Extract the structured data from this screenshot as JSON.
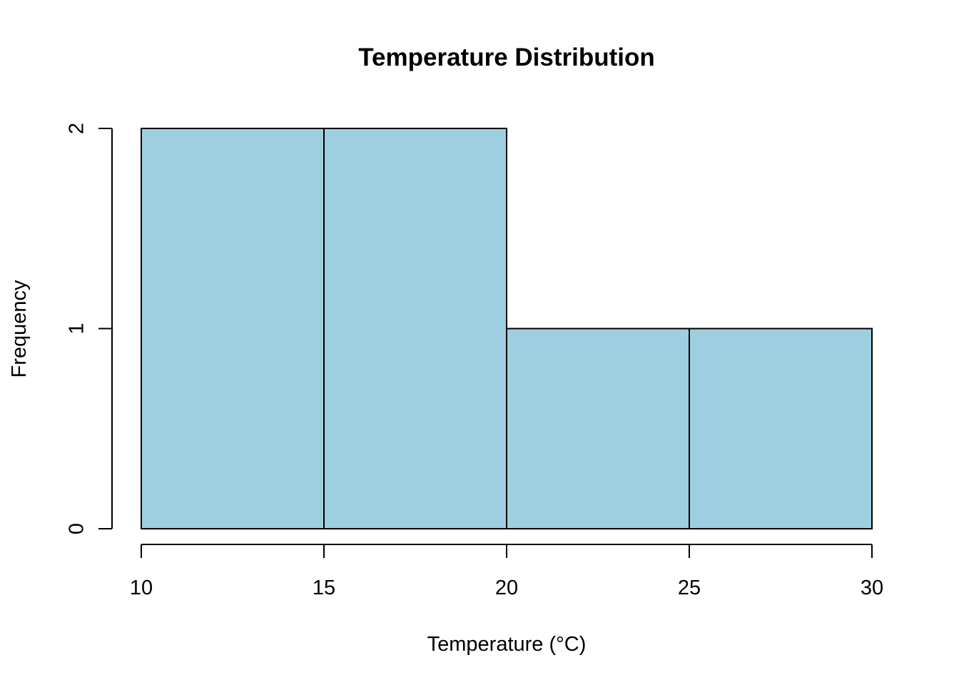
{
  "chart_data": {
    "type": "bar",
    "subtype": "histogram",
    "title": "Temperature Distribution",
    "xlabel": "Temperature (°C)",
    "ylabel": "Frequency",
    "bins": [
      {
        "start": 10,
        "end": 15,
        "count": 2
      },
      {
        "start": 15,
        "end": 20,
        "count": 2
      },
      {
        "start": 20,
        "end": 25,
        "count": 1
      },
      {
        "start": 25,
        "end": 30,
        "count": 1
      }
    ],
    "xlim": [
      10,
      30
    ],
    "ylim": [
      0,
      2
    ],
    "x_ticks": [
      "10",
      "15",
      "20",
      "25",
      "30"
    ],
    "y_ticks": [
      "0",
      "1",
      "2"
    ],
    "bar_color": "#9ecfe0",
    "grid": false,
    "legend": "none"
  }
}
